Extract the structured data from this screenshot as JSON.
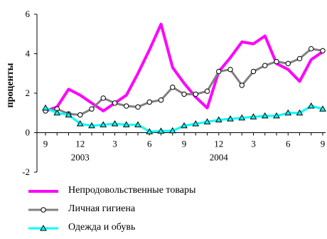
{
  "chart_data": {
    "type": "line",
    "title": "",
    "xlabel": "",
    "ylabel": "проценты",
    "ylim": [
      -2,
      6
    ],
    "yticks": [
      -2,
      0,
      2,
      4,
      6
    ],
    "grid": false,
    "legend_position": "bottom",
    "x_tick_labels": [
      {
        "index": 0,
        "label": "9"
      },
      {
        "index": 3,
        "label": "12"
      },
      {
        "index": 6,
        "label": "3"
      },
      {
        "index": 9,
        "label": "6"
      },
      {
        "index": 12,
        "label": "9"
      },
      {
        "index": 15,
        "label": "12"
      },
      {
        "index": 18,
        "label": "3"
      },
      {
        "index": 21,
        "label": "6"
      },
      {
        "index": 24,
        "label": "9"
      }
    ],
    "year_labels": [
      {
        "index": 3,
        "label": "2003"
      },
      {
        "index": 15,
        "label": "2004"
      }
    ],
    "x_count": 25,
    "series": [
      {
        "name": "Непродовольственные товары",
        "color": "#ff00ff",
        "marker": "none",
        "values": [
          1.1,
          1.3,
          2.2,
          1.9,
          1.5,
          1.1,
          1.5,
          1.9,
          3.0,
          4.2,
          5.5,
          3.3,
          2.5,
          1.8,
          1.25,
          3.1,
          3.8,
          4.6,
          4.5,
          4.9,
          3.5,
          3.2,
          2.6,
          3.7,
          4.1
        ]
      },
      {
        "name": "Личная гигиена",
        "color": "#808080",
        "marker": "circle",
        "values": [
          1.1,
          1.2,
          0.95,
          0.9,
          1.2,
          1.75,
          1.5,
          1.35,
          1.3,
          1.55,
          1.65,
          2.3,
          1.95,
          1.95,
          2.1,
          3.1,
          3.2,
          2.4,
          3.1,
          3.4,
          3.6,
          3.5,
          3.75,
          4.25,
          4.15
        ]
      },
      {
        "name": "Одежда и обувь",
        "color": "#00ffff",
        "marker": "triangle",
        "values": [
          1.25,
          1.0,
          0.9,
          0.45,
          0.35,
          0.4,
          0.45,
          0.4,
          0.4,
          0.05,
          0.08,
          0.1,
          0.35,
          0.45,
          0.55,
          0.65,
          0.7,
          0.75,
          0.8,
          0.85,
          0.85,
          1.0,
          1.0,
          1.35,
          1.2
        ]
      }
    ]
  }
}
